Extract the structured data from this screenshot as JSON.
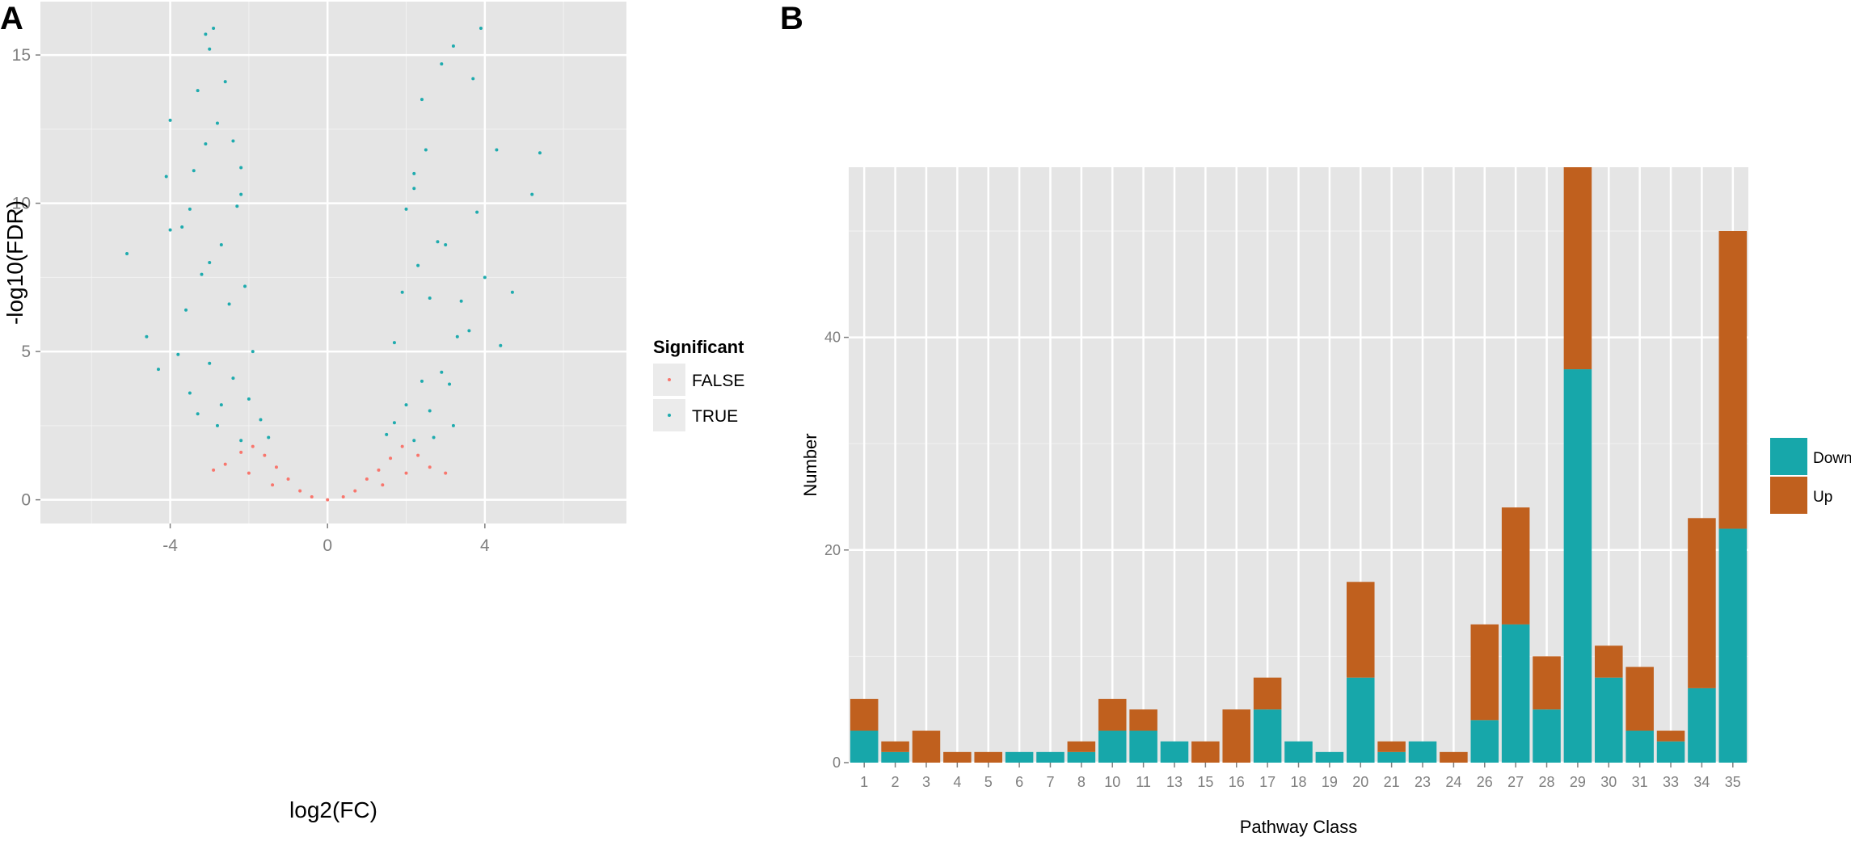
{
  "colors": {
    "panel_bg": "#e5e5e5",
    "grid_major": "#ffffff",
    "grid_minor": "#f2f2f2",
    "tick_text": "#7f7f7f",
    "false_point": "#f8766d",
    "true_point": "#1fabae",
    "down": "#17a7aa",
    "up": "#c0601e",
    "legend_key_bg": "#ebebeb"
  },
  "chart_data": [
    {
      "panel": "A",
      "type": "scatter",
      "title": "",
      "xlabel": "log2(FC)",
      "ylabel": "-log10(FDR)",
      "xlim": [
        -7.3,
        7.6
      ],
      "ylim": [
        -0.8,
        16.8
      ],
      "x_ticks": [
        -4,
        0,
        4
      ],
      "x_tick_labels": [
        "-4",
        "0",
        "4"
      ],
      "y_ticks": [
        0,
        5,
        10,
        15
      ],
      "y_tick_labels": [
        "0",
        "5",
        "10",
        "15"
      ],
      "grid": true,
      "legend": {
        "title": "Significant",
        "position": "right",
        "entries": [
          "FALSE",
          "TRUE"
        ]
      },
      "series": [
        {
          "name": "TRUE",
          "points": [
            [
              -2.9,
              15.9
            ],
            [
              -3.1,
              15.7
            ],
            [
              -3.0,
              15.2
            ],
            [
              2.9,
              14.7
            ],
            [
              3.7,
              14.2
            ],
            [
              3.9,
              15.9
            ],
            [
              3.2,
              15.3
            ],
            [
              -2.6,
              14.1
            ],
            [
              -3.3,
              13.8
            ],
            [
              2.4,
              13.5
            ],
            [
              -4.0,
              12.8
            ],
            [
              -2.8,
              12.7
            ],
            [
              -2.4,
              12.1
            ],
            [
              2.5,
              11.8
            ],
            [
              4.3,
              11.8
            ],
            [
              5.4,
              11.7
            ],
            [
              -3.1,
              12.0
            ],
            [
              -3.4,
              11.1
            ],
            [
              -2.2,
              11.2
            ],
            [
              2.2,
              11.0
            ],
            [
              -4.1,
              10.9
            ],
            [
              5.2,
              10.3
            ],
            [
              -2.2,
              10.3
            ],
            [
              2.2,
              10.5
            ],
            [
              -3.7,
              9.2
            ],
            [
              -4.0,
              9.1
            ],
            [
              3.8,
              9.7
            ],
            [
              -5.1,
              8.3
            ],
            [
              -3.5,
              9.8
            ],
            [
              2.8,
              8.7
            ],
            [
              4.0,
              7.5
            ],
            [
              4.7,
              7.0
            ],
            [
              -3.0,
              8.0
            ],
            [
              3.0,
              8.6
            ],
            [
              -4.6,
              5.5
            ],
            [
              -4.3,
              4.4
            ],
            [
              4.4,
              5.2
            ],
            [
              3.4,
              6.7
            ],
            [
              3.6,
              5.7
            ],
            [
              -2.7,
              8.6
            ],
            [
              -2.3,
              9.9
            ],
            [
              2.0,
              9.8
            ],
            [
              -3.2,
              7.6
            ],
            [
              -3.6,
              6.4
            ],
            [
              2.6,
              6.8
            ],
            [
              3.3,
              5.5
            ],
            [
              -3.8,
              4.9
            ],
            [
              -3.5,
              3.6
            ],
            [
              3.1,
              3.9
            ],
            [
              -2.5,
              6.6
            ],
            [
              2.3,
              7.9
            ],
            [
              -2.1,
              7.2
            ],
            [
              1.9,
              7.0
            ],
            [
              -3.0,
              4.6
            ],
            [
              2.9,
              4.3
            ],
            [
              -2.7,
              3.2
            ],
            [
              2.6,
              3.0
            ],
            [
              -1.9,
              5.0
            ],
            [
              1.7,
              5.3
            ],
            [
              -2.4,
              4.1
            ],
            [
              2.4,
              4.0
            ],
            [
              -2.0,
              3.4
            ],
            [
              2.0,
              3.2
            ],
            [
              -1.7,
              2.7
            ],
            [
              1.7,
              2.6
            ],
            [
              -1.5,
              2.1
            ],
            [
              1.5,
              2.2
            ],
            [
              -3.3,
              2.9
            ],
            [
              3.2,
              2.5
            ],
            [
              -2.8,
              2.5
            ],
            [
              2.7,
              2.1
            ],
            [
              -2.2,
              2.0
            ],
            [
              2.2,
              2.0
            ]
          ]
        },
        {
          "name": "FALSE",
          "points": [
            [
              -1.9,
              1.8
            ],
            [
              1.9,
              1.8
            ],
            [
              -1.6,
              1.5
            ],
            [
              1.6,
              1.4
            ],
            [
              -1.3,
              1.1
            ],
            [
              1.3,
              1.0
            ],
            [
              -1.0,
              0.7
            ],
            [
              1.0,
              0.7
            ],
            [
              -0.7,
              0.3
            ],
            [
              0.7,
              0.3
            ],
            [
              -0.4,
              0.1
            ],
            [
              0.4,
              0.1
            ],
            [
              0.0,
              0.0
            ],
            [
              -2.2,
              1.6
            ],
            [
              2.3,
              1.5
            ],
            [
              -2.6,
              1.2
            ],
            [
              2.6,
              1.1
            ],
            [
              -2.0,
              0.9
            ],
            [
              2.0,
              0.9
            ],
            [
              -1.4,
              0.5
            ],
            [
              1.4,
              0.5
            ],
            [
              -2.9,
              1.0
            ],
            [
              3.0,
              0.9
            ]
          ]
        }
      ]
    },
    {
      "panel": "B",
      "type": "bar",
      "stacked": true,
      "title": "",
      "xlabel": "Pathway Class",
      "ylabel": "Number",
      "ylim": [
        0,
        56
      ],
      "y_ticks": [
        0,
        20,
        40
      ],
      "y_tick_labels": [
        "0",
        "20",
        "40"
      ],
      "grid": true,
      "legend": {
        "title": "",
        "position": "right",
        "entries": [
          "Down",
          "Up"
        ]
      },
      "categories": [
        "1",
        "2",
        "3",
        "4",
        "5",
        "6",
        "7",
        "8",
        "10",
        "11",
        "13",
        "15",
        "16",
        "17",
        "18",
        "19",
        "20",
        "21",
        "23",
        "24",
        "26",
        "27",
        "28",
        "29",
        "30",
        "31",
        "33",
        "34",
        "35"
      ],
      "series": [
        {
          "name": "Down",
          "values": [
            3,
            1,
            0,
            0,
            0,
            1,
            1,
            1,
            3,
            3,
            2,
            0,
            0,
            5,
            2,
            1,
            8,
            1,
            2,
            0,
            4,
            13,
            5,
            37,
            8,
            3,
            2,
            7,
            22
          ]
        },
        {
          "name": "Up",
          "values": [
            3,
            1,
            3,
            1,
            1,
            0,
            0,
            1,
            3,
            2,
            0,
            2,
            5,
            3,
            0,
            0,
            9,
            1,
            0,
            1,
            9,
            11,
            5,
            19,
            3,
            6,
            1,
            16,
            28
          ]
        }
      ]
    }
  ],
  "labels": {
    "panel_a": "A",
    "panel_b": "B"
  }
}
